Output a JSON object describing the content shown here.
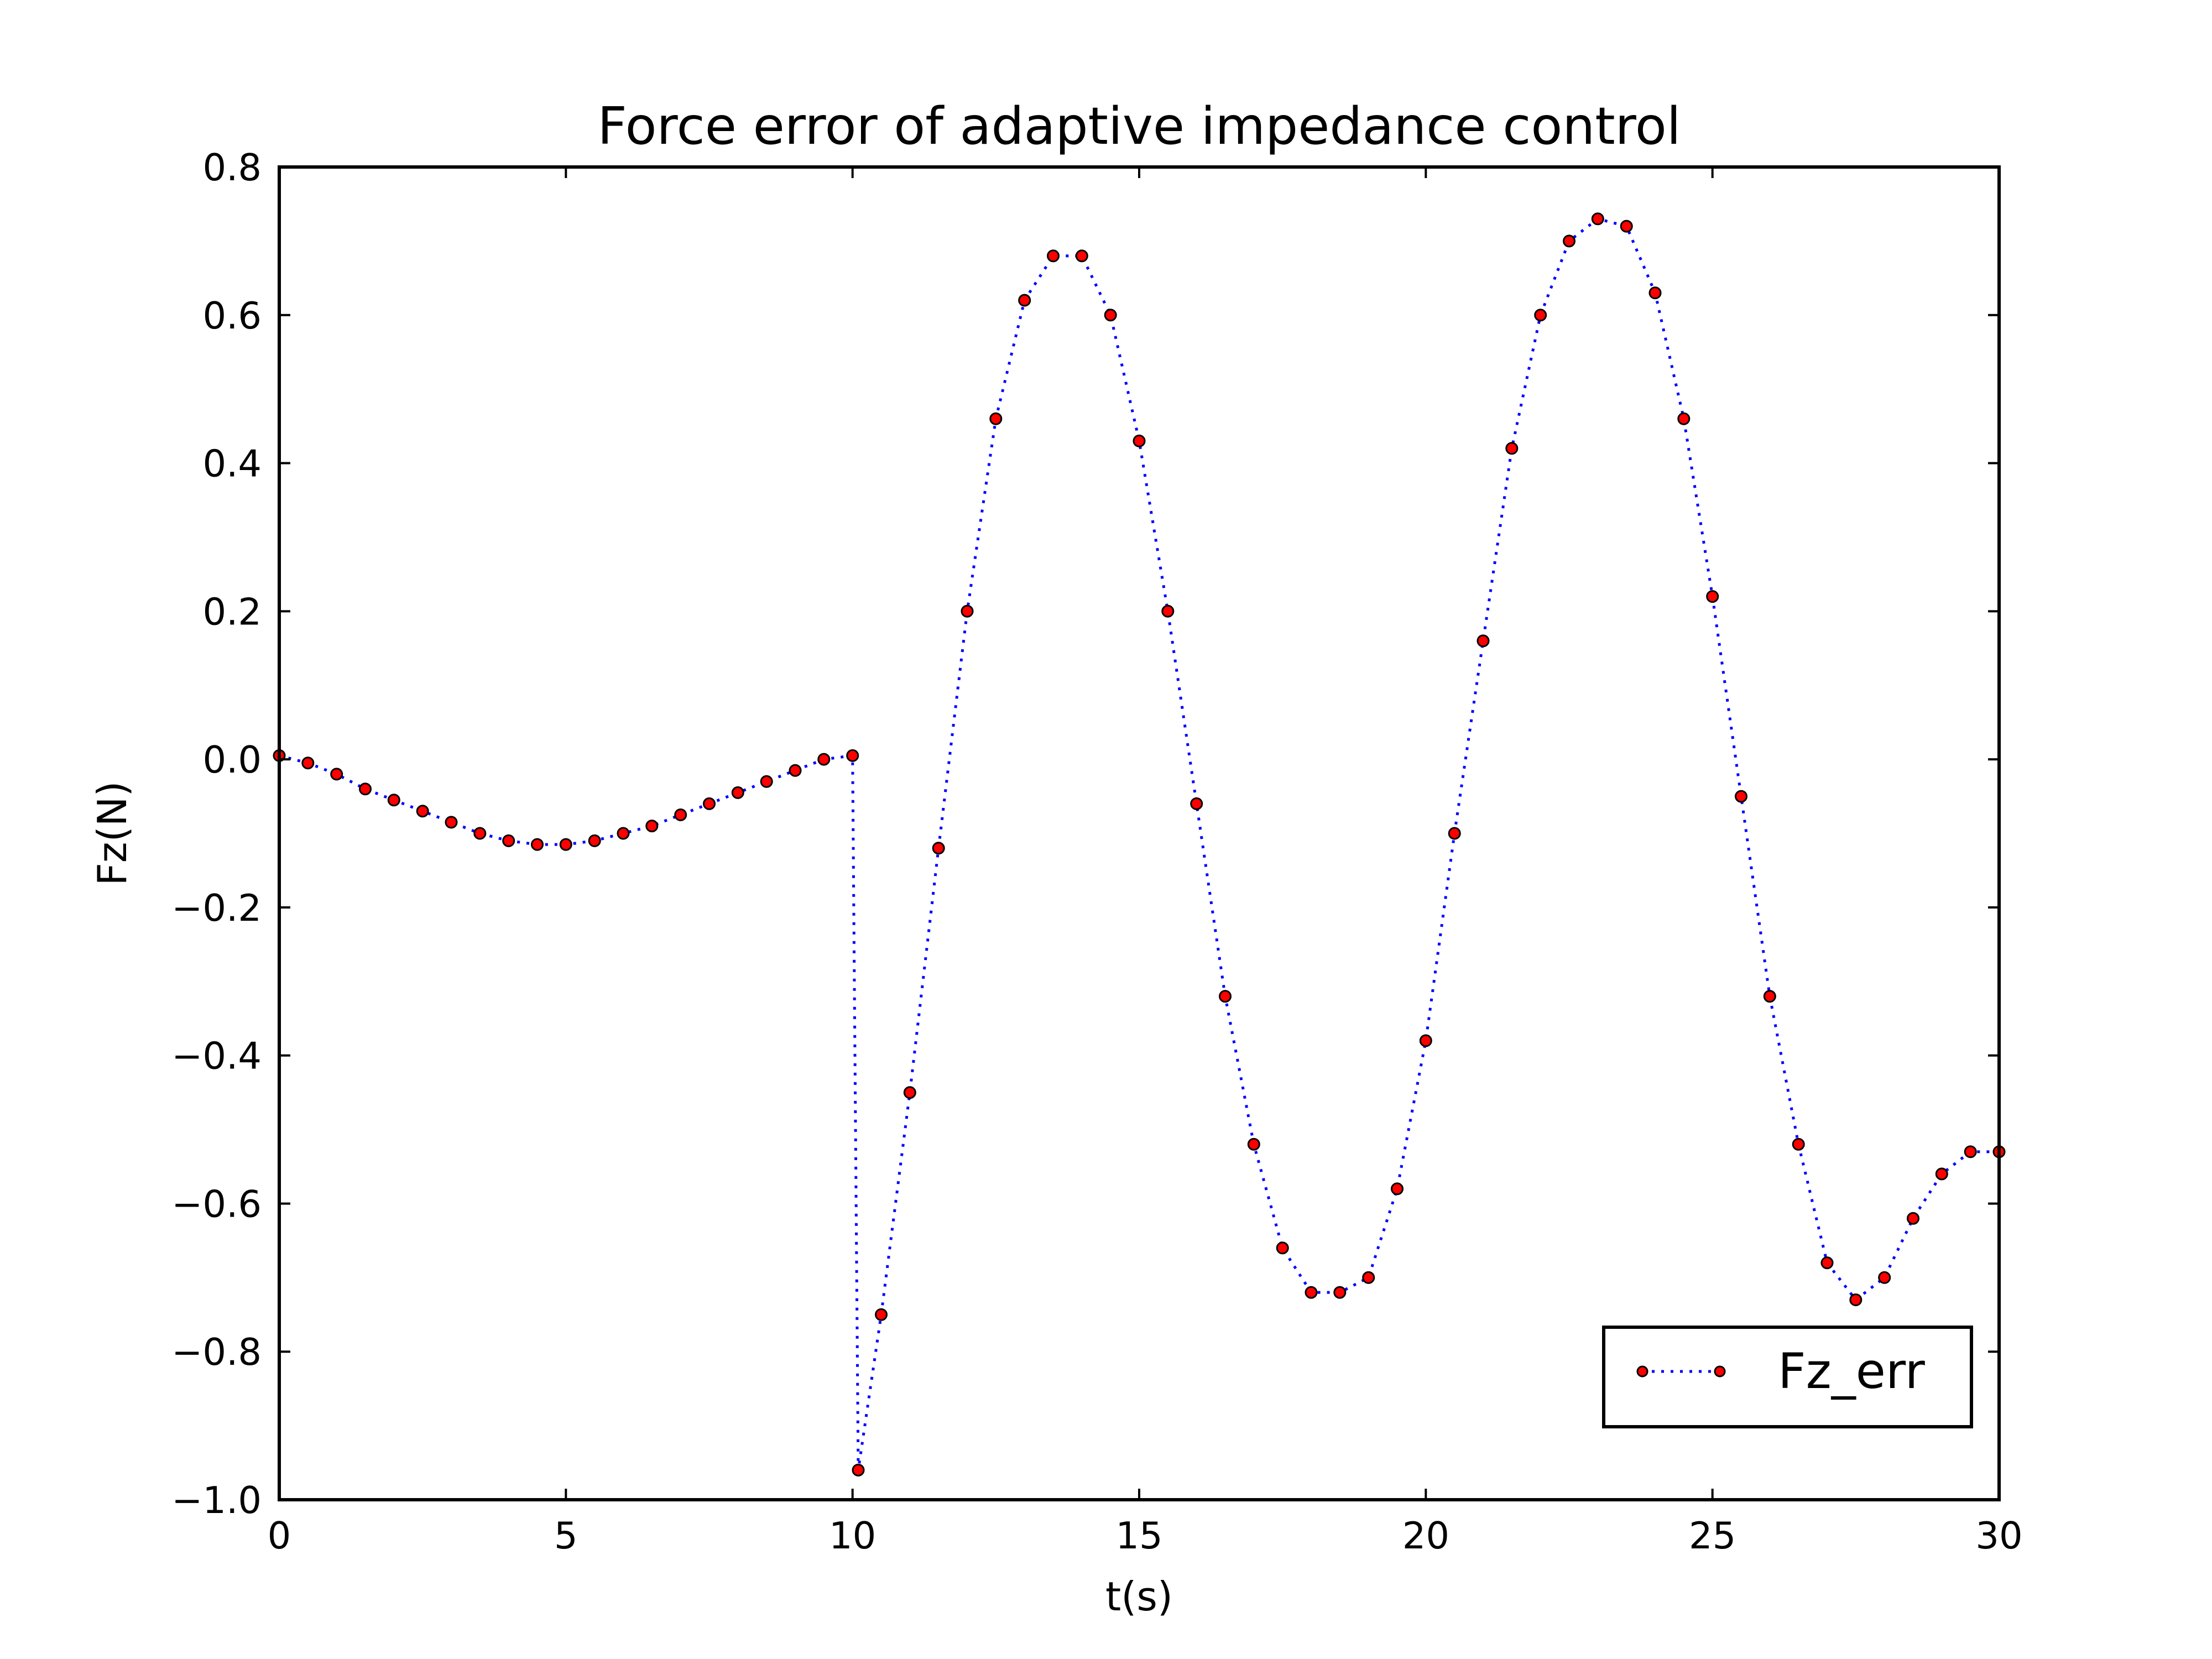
{
  "chart_data": {
    "type": "line",
    "title": "Force error of adaptive impedance control",
    "xlabel": "t(s)",
    "ylabel": "Fz(N)",
    "xlim": [
      0,
      30
    ],
    "ylim": [
      -1.0,
      0.8
    ],
    "x_ticks": [
      0,
      5,
      10,
      15,
      20,
      25,
      30
    ],
    "x_tick_labels": [
      "0",
      "5",
      "10",
      "15",
      "20",
      "25",
      "30"
    ],
    "y_ticks": [
      0.8,
      0.6,
      0.4,
      0.2,
      0.0,
      -0.2,
      -0.4,
      -0.6,
      -0.8,
      -1.0
    ],
    "y_tick_labels": [
      "0.8",
      "0.6",
      "0.4",
      "0.2",
      "0.0",
      "−0.2",
      "−0.4",
      "−0.6",
      "−0.8",
      "−1.0"
    ],
    "grid": false,
    "legend_position": "bottom-right",
    "series": [
      {
        "name": "Fz_err",
        "line_style": "dotted",
        "line_color": "#0000ff",
        "marker": "circle",
        "marker_face": "#ff0000",
        "marker_edge": "#000000",
        "x": [
          0,
          0.5,
          1.0,
          1.5,
          2.0,
          2.5,
          3.0,
          3.5,
          4.0,
          4.5,
          5.0,
          5.5,
          6.0,
          6.5,
          7.0,
          7.5,
          8.0,
          8.5,
          9.0,
          9.5,
          10.0,
          10.1,
          10.5,
          11.0,
          11.5,
          12.0,
          12.5,
          13.0,
          13.5,
          14.0,
          14.5,
          15.0,
          15.5,
          16.0,
          16.5,
          17.0,
          17.5,
          18.0,
          18.5,
          19.0,
          19.5,
          20.0,
          20.5,
          21.0,
          21.5,
          22.0,
          22.5,
          23.0,
          23.5,
          24.0,
          24.5,
          25.0,
          25.5,
          26.0,
          26.5,
          27.0,
          27.5,
          28.0,
          28.5,
          29.0,
          29.5,
          30.0
        ],
        "y": [
          0.005,
          -0.005,
          -0.02,
          -0.04,
          -0.055,
          -0.07,
          -0.085,
          -0.1,
          -0.11,
          -0.115,
          -0.115,
          -0.11,
          -0.1,
          -0.09,
          -0.075,
          -0.06,
          -0.045,
          -0.03,
          -0.015,
          0.0,
          0.005,
          -0.96,
          -0.75,
          -0.45,
          -0.12,
          0.2,
          0.46,
          0.62,
          0.68,
          0.68,
          0.6,
          0.43,
          0.2,
          -0.06,
          -0.32,
          -0.52,
          -0.66,
          -0.72,
          -0.72,
          -0.7,
          -0.58,
          -0.38,
          -0.1,
          0.16,
          0.42,
          0.6,
          0.7,
          0.73,
          0.72,
          0.63,
          0.46,
          0.22,
          -0.05,
          -0.32,
          -0.52,
          -0.68,
          -0.73,
          -0.7,
          -0.62,
          -0.56,
          -0.53,
          -0.53
        ]
      }
    ]
  }
}
